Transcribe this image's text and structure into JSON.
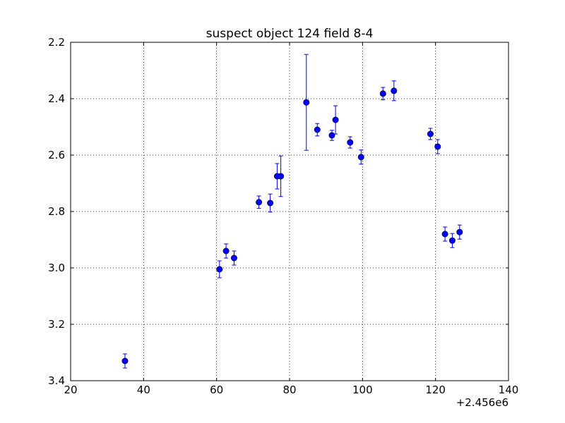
{
  "chart_data": {
    "type": "scatter",
    "title": "suspect object 124 field 8-4",
    "xlabel": "",
    "ylabel": "",
    "x_offset_label": "+2.456e6",
    "xlim": [
      20,
      140
    ],
    "ylim": [
      3.4,
      2.2
    ],
    "y_inverted": true,
    "x_ticks": [
      "20",
      "40",
      "60",
      "80",
      "100",
      "120",
      "140"
    ],
    "y_ticks": [
      "2.2",
      "2.4",
      "2.6",
      "2.8",
      "3.0",
      "3.2",
      "3.4"
    ],
    "grid": true,
    "grid_style": "dotted",
    "marker_color": "#0000ff",
    "errorbar_color": "#0000ff",
    "points": [
      {
        "x": 34.9,
        "y": 3.33,
        "err": 0.025
      },
      {
        "x": 60.8,
        "y": 3.005,
        "err": 0.03
      },
      {
        "x": 62.6,
        "y": 2.94,
        "err": 0.025
      },
      {
        "x": 64.8,
        "y": 2.965,
        "err": 0.025
      },
      {
        "x": 71.6,
        "y": 2.767,
        "err": 0.022
      },
      {
        "x": 74.7,
        "y": 2.77,
        "err": 0.032
      },
      {
        "x": 76.6,
        "y": 2.675,
        "err": 0.045
      },
      {
        "x": 77.6,
        "y": 2.675,
        "err": 0.072
      },
      {
        "x": 84.6,
        "y": 2.413,
        "err": 0.17
      },
      {
        "x": 87.6,
        "y": 2.51,
        "err": 0.022
      },
      {
        "x": 91.6,
        "y": 2.53,
        "err": 0.018
      },
      {
        "x": 92.6,
        "y": 2.475,
        "err": 0.05
      },
      {
        "x": 96.6,
        "y": 2.555,
        "err": 0.02
      },
      {
        "x": 99.6,
        "y": 2.607,
        "err": 0.025
      },
      {
        "x": 105.6,
        "y": 2.382,
        "err": 0.022
      },
      {
        "x": 108.6,
        "y": 2.372,
        "err": 0.035
      },
      {
        "x": 118.6,
        "y": 2.525,
        "err": 0.02
      },
      {
        "x": 120.6,
        "y": 2.57,
        "err": 0.025
      },
      {
        "x": 122.6,
        "y": 2.88,
        "err": 0.025
      },
      {
        "x": 124.6,
        "y": 2.903,
        "err": 0.025
      },
      {
        "x": 126.6,
        "y": 2.873,
        "err": 0.025
      }
    ]
  }
}
